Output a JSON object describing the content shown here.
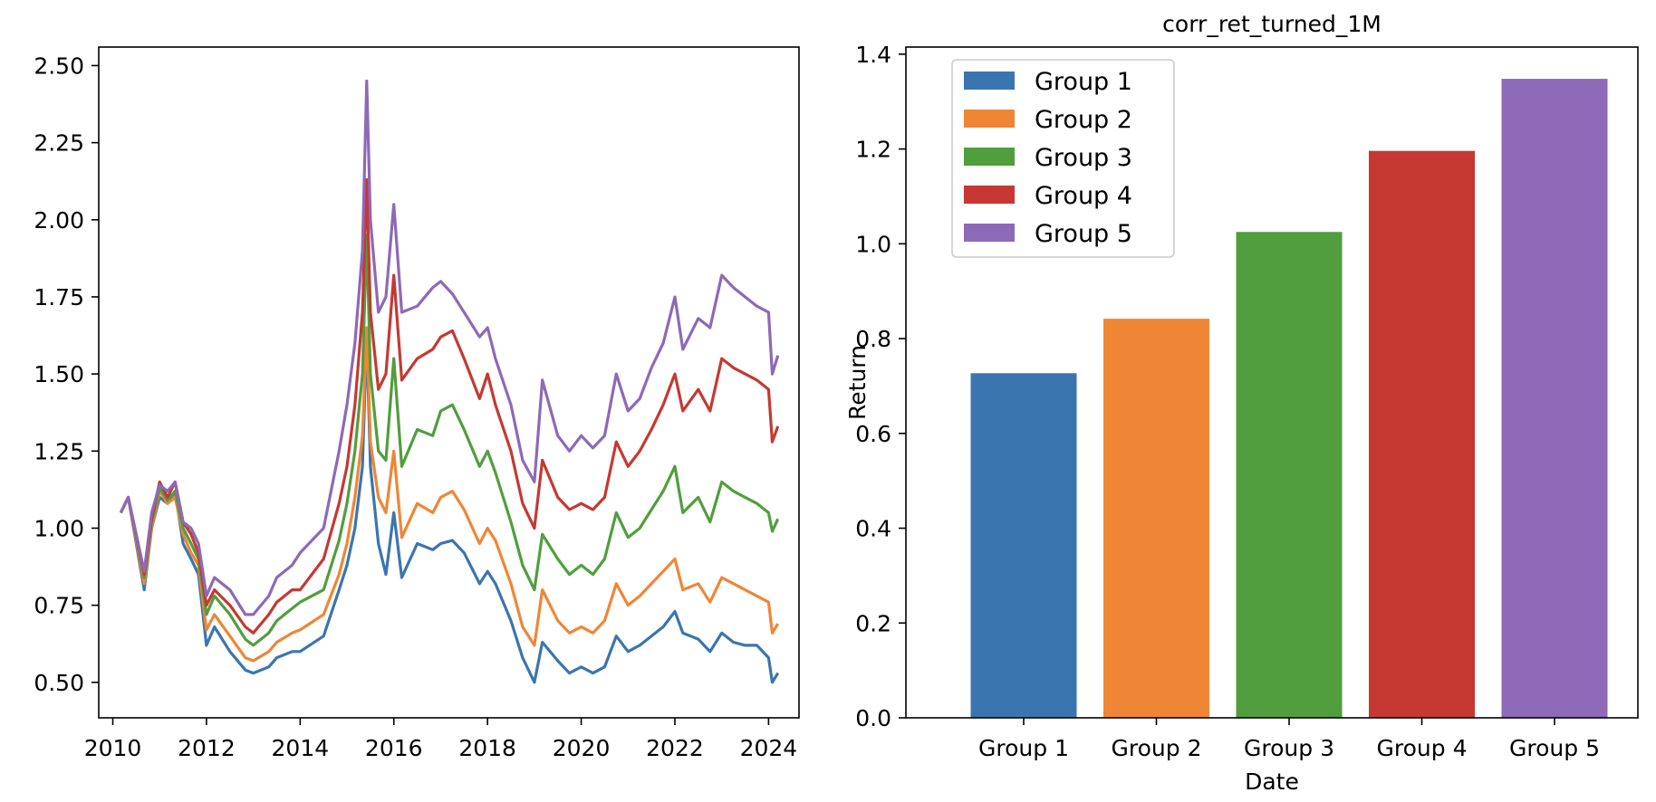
{
  "chart_data": [
    {
      "type": "line",
      "title": "",
      "xlabel": "",
      "ylabel": "",
      "xlim": [
        2009.7,
        2024.65
      ],
      "ylim": [
        0.385,
        2.56
      ],
      "xticks": [
        "2010",
        "2012",
        "2014",
        "2016",
        "2018",
        "2020",
        "2022",
        "2024"
      ],
      "xtick_values": [
        2010,
        2012,
        2014,
        2016,
        2018,
        2020,
        2022,
        2024
      ],
      "yticks": [
        "0.50",
        "0.75",
        "1.00",
        "1.25",
        "1.50",
        "1.75",
        "2.00",
        "2.25",
        "2.50"
      ],
      "ytick_values": [
        0.5,
        0.75,
        1.0,
        1.25,
        1.5,
        1.75,
        2.0,
        2.25,
        2.5
      ],
      "grid": false,
      "x": [
        2010.17,
        2010.33,
        2010.67,
        2010.83,
        2011.0,
        2011.17,
        2011.33,
        2011.5,
        2011.67,
        2011.83,
        2012.0,
        2012.17,
        2012.5,
        2012.83,
        2013.0,
        2013.33,
        2013.5,
        2013.83,
        2014.0,
        2014.5,
        2014.83,
        2015.0,
        2015.17,
        2015.33,
        2015.42,
        2015.5,
        2015.67,
        2015.83,
        2016.0,
        2016.17,
        2016.5,
        2016.83,
        2017.0,
        2017.25,
        2017.5,
        2017.83,
        2018.0,
        2018.17,
        2018.5,
        2018.75,
        2019.0,
        2019.17,
        2019.5,
        2019.75,
        2020.0,
        2020.25,
        2020.5,
        2020.75,
        2021.0,
        2021.25,
        2021.5,
        2021.75,
        2022.0,
        2022.17,
        2022.5,
        2022.75,
        2023.0,
        2023.25,
        2023.5,
        2023.75,
        2024.0,
        2024.08,
        2024.2
      ],
      "series": [
        {
          "color": "#3b75af",
          "values": [
            1.05,
            1.1,
            0.8,
            1.0,
            1.1,
            1.08,
            1.12,
            0.95,
            0.9,
            0.85,
            0.62,
            0.68,
            0.6,
            0.54,
            0.53,
            0.55,
            0.58,
            0.6,
            0.6,
            0.65,
            0.8,
            0.88,
            1.0,
            1.2,
            1.62,
            1.2,
            0.95,
            0.85,
            1.05,
            0.84,
            0.95,
            0.93,
            0.95,
            0.96,
            0.92,
            0.82,
            0.86,
            0.82,
            0.7,
            0.58,
            0.5,
            0.63,
            0.57,
            0.53,
            0.55,
            0.53,
            0.55,
            0.65,
            0.6,
            0.62,
            0.65,
            0.68,
            0.73,
            0.66,
            0.64,
            0.6,
            0.66,
            0.63,
            0.62,
            0.62,
            0.58,
            0.5,
            0.53
          ]
        },
        {
          "color": "#ef8636",
          "values": [
            1.05,
            1.1,
            0.82,
            1.0,
            1.12,
            1.08,
            1.1,
            0.98,
            0.92,
            0.88,
            0.67,
            0.72,
            0.65,
            0.58,
            0.57,
            0.6,
            0.63,
            0.66,
            0.67,
            0.72,
            0.85,
            0.95,
            1.1,
            1.3,
            1.65,
            1.28,
            1.1,
            1.05,
            1.25,
            0.97,
            1.08,
            1.05,
            1.1,
            1.12,
            1.06,
            0.95,
            1.0,
            0.96,
            0.82,
            0.68,
            0.62,
            0.8,
            0.7,
            0.66,
            0.68,
            0.66,
            0.7,
            0.82,
            0.75,
            0.78,
            0.82,
            0.86,
            0.9,
            0.8,
            0.82,
            0.76,
            0.84,
            0.82,
            0.8,
            0.78,
            0.76,
            0.66,
            0.69
          ]
        },
        {
          "color": "#519e3e",
          "values": [
            1.05,
            1.1,
            0.84,
            1.02,
            1.13,
            1.09,
            1.12,
            1.0,
            0.95,
            0.9,
            0.72,
            0.78,
            0.72,
            0.64,
            0.62,
            0.66,
            0.7,
            0.74,
            0.76,
            0.8,
            0.96,
            1.08,
            1.25,
            1.5,
            1.95,
            1.5,
            1.25,
            1.22,
            1.55,
            1.2,
            1.32,
            1.3,
            1.38,
            1.4,
            1.32,
            1.2,
            1.25,
            1.18,
            1.02,
            0.88,
            0.8,
            0.98,
            0.9,
            0.85,
            0.88,
            0.85,
            0.9,
            1.05,
            0.97,
            1.0,
            1.06,
            1.12,
            1.2,
            1.05,
            1.1,
            1.02,
            1.15,
            1.12,
            1.1,
            1.08,
            1.05,
            0.99,
            1.03
          ]
        },
        {
          "color": "#c53932",
          "values": [
            1.05,
            1.1,
            0.85,
            1.03,
            1.15,
            1.1,
            1.15,
            1.02,
            0.98,
            0.92,
            0.75,
            0.8,
            0.75,
            0.68,
            0.66,
            0.72,
            0.76,
            0.8,
            0.8,
            0.9,
            1.08,
            1.2,
            1.4,
            1.7,
            2.13,
            1.7,
            1.45,
            1.5,
            1.82,
            1.48,
            1.55,
            1.58,
            1.62,
            1.64,
            1.55,
            1.42,
            1.5,
            1.4,
            1.25,
            1.08,
            1.0,
            1.22,
            1.1,
            1.06,
            1.08,
            1.06,
            1.1,
            1.28,
            1.2,
            1.25,
            1.32,
            1.4,
            1.5,
            1.38,
            1.45,
            1.38,
            1.55,
            1.52,
            1.5,
            1.48,
            1.45,
            1.28,
            1.33
          ]
        },
        {
          "color": "#8d69b8",
          "values": [
            1.05,
            1.1,
            0.86,
            1.05,
            1.14,
            1.12,
            1.15,
            1.02,
            1.0,
            0.95,
            0.78,
            0.84,
            0.8,
            0.72,
            0.72,
            0.78,
            0.84,
            0.88,
            0.92,
            1.0,
            1.25,
            1.4,
            1.6,
            1.9,
            2.45,
            2.0,
            1.7,
            1.75,
            2.05,
            1.7,
            1.72,
            1.78,
            1.8,
            1.76,
            1.7,
            1.62,
            1.65,
            1.55,
            1.4,
            1.22,
            1.15,
            1.48,
            1.3,
            1.25,
            1.3,
            1.26,
            1.3,
            1.5,
            1.38,
            1.42,
            1.52,
            1.6,
            1.75,
            1.58,
            1.68,
            1.65,
            1.82,
            1.78,
            1.75,
            1.72,
            1.7,
            1.5,
            1.56
          ]
        }
      ]
    },
    {
      "type": "bar",
      "title": "corr_ret_turned_1M",
      "xlabel": "Date",
      "ylabel": "Return",
      "categories": [
        "Group 1",
        "Group 2",
        "Group 3",
        "Group 4",
        "Group 5"
      ],
      "values": [
        0.727,
        0.842,
        1.025,
        1.196,
        1.348
      ],
      "colors": [
        "#3b75af",
        "#ef8636",
        "#519e3e",
        "#c53932",
        "#8d69b8"
      ],
      "ylim": [
        0,
        1.415
      ],
      "yticks": [
        "0.0",
        "0.2",
        "0.4",
        "0.6",
        "0.8",
        "1.0",
        "1.2",
        "1.4"
      ],
      "ytick_values": [
        0,
        0.2,
        0.4,
        0.6,
        0.8,
        1.0,
        1.2,
        1.4
      ],
      "grid": false,
      "legend_position": "top-left",
      "legend": [
        "Group 1",
        "Group 2",
        "Group 3",
        "Group 4",
        "Group 5"
      ]
    }
  ]
}
